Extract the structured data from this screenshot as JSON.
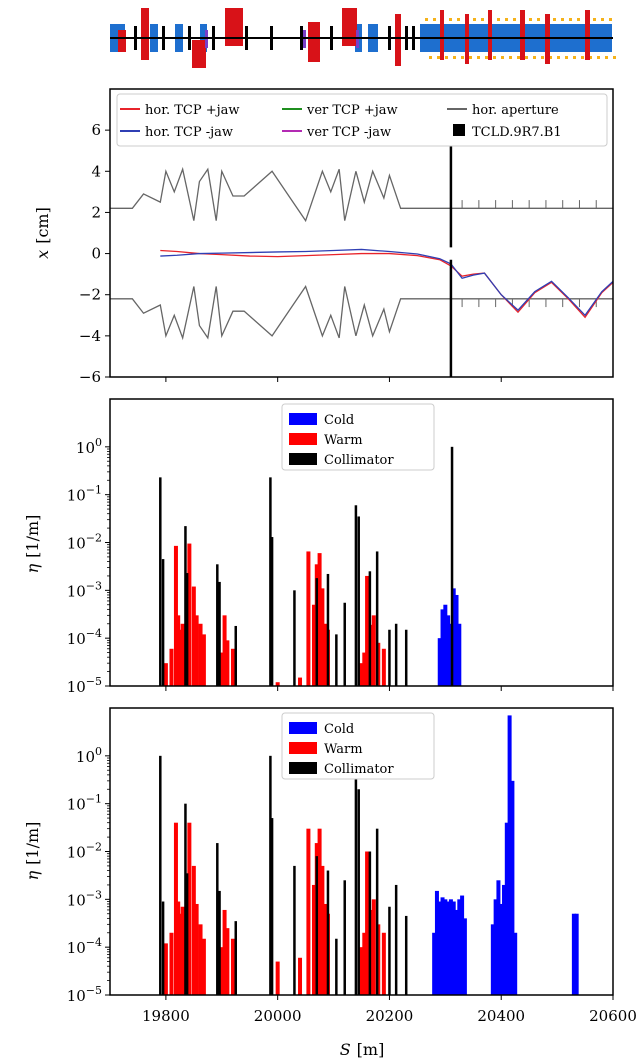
{
  "colors": {
    "hor_pos": "#e8242b",
    "hor_neg": "#2f3fb4",
    "ver_pos": "#1f8f1f",
    "ver_neg": "#b32ab3",
    "aperture": "#666666",
    "cold": "#0000ff",
    "warm": "#ff0000",
    "collimator": "#000000",
    "lattice_dipole": "#1e6fcf",
    "lattice_quad": "#d81218",
    "lattice_sext": "#f5b21a",
    "lattice_kicker": "#7a3fc8"
  },
  "chart_data": [
    {
      "type": "line",
      "panel": "orbit",
      "xlabel": "",
      "ylabel_symbol": "x",
      "ylabel_unit": "[cm]",
      "ylim": [
        -6,
        8
      ],
      "xlim": [
        19700,
        20600
      ],
      "yticks": [
        "6",
        "4",
        "2",
        "0",
        "−2",
        "−4",
        "−6"
      ],
      "legend": [
        "hor. TCP +jaw",
        "hor. TCP -jaw",
        "ver TCP +jaw",
        "ver TCP -jaw",
        "hor. aperture",
        "TCLD.9R7.B1"
      ],
      "legend_position": "top",
      "tcld_position": 20310,
      "series": [
        {
          "name": "hor. TCP +jaw",
          "x": [
            19790,
            19820,
            19860,
            19900,
            19950,
            20000,
            20050,
            20100,
            20150,
            20200,
            20250,
            20290,
            20310,
            20330,
            20350,
            20370,
            20400,
            20430,
            20460,
            20490,
            20520,
            20550,
            20580,
            20600
          ],
          "y": [
            0.15,
            0.1,
            0.0,
            -0.05,
            -0.12,
            -0.15,
            -0.1,
            -0.05,
            0.0,
            0.0,
            -0.1,
            -0.3,
            -0.6,
            -1.1,
            -1.0,
            -0.95,
            -2.0,
            -2.85,
            -1.9,
            -1.4,
            -2.2,
            -3.1,
            -1.9,
            -1.4
          ]
        },
        {
          "name": "hor. TCP -jaw",
          "x": [
            19790,
            19820,
            19860,
            19900,
            19950,
            20000,
            20050,
            20100,
            20150,
            20200,
            20250,
            20290,
            20310,
            20330,
            20350,
            20370,
            20400,
            20430,
            20460,
            20490,
            20520,
            20550,
            20580,
            20600
          ],
          "y": [
            -0.12,
            -0.08,
            0.0,
            0.02,
            0.05,
            0.08,
            0.1,
            0.15,
            0.2,
            0.1,
            -0.02,
            -0.25,
            -0.5,
            -1.2,
            -1.05,
            -0.95,
            -2.0,
            -2.75,
            -1.85,
            -1.35,
            -2.15,
            -3.0,
            -1.85,
            -1.35
          ]
        },
        {
          "name": "hor. aperture",
          "x": [
            19700,
            19740,
            19760,
            19790,
            19800,
            19815,
            19830,
            19850,
            19860,
            19875,
            19890,
            19900,
            19920,
            19940,
            19990,
            20020,
            20050,
            20080,
            20095,
            20110,
            20120,
            20140,
            20155,
            20170,
            20190,
            20200,
            20220,
            20600
          ],
          "y": [
            2.2,
            2.2,
            2.9,
            2.5,
            4.0,
            3.0,
            4.1,
            1.6,
            3.5,
            4.1,
            1.6,
            4.0,
            2.8,
            2.8,
            4.0,
            2.8,
            1.6,
            4.0,
            3.0,
            4.1,
            1.6,
            4.0,
            2.5,
            4.0,
            2.7,
            3.8,
            2.2,
            2.2
          ]
        }
      ]
    },
    {
      "type": "bar",
      "panel": "loss-map-1",
      "ylabel_symbol": "η",
      "ylabel_unit": "[1/m]",
      "yscale": "log",
      "ylim_exp": [
        -5,
        1
      ],
      "yticks_exp": [
        0,
        -1,
        -2,
        -3,
        -4,
        -5
      ],
      "xlim": [
        19700,
        20600
      ],
      "legend": [
        "Cold",
        "Warm",
        "Collimator"
      ],
      "legend_position": "top-center",
      "collimator": {
        "x": [
          19790,
          19795,
          19835,
          19838,
          19892,
          19896,
          19925,
          19987,
          19990,
          20030,
          20070,
          20090,
          20105,
          20120,
          20140,
          20145,
          20165,
          20178,
          20200,
          20212,
          20230,
          20312
        ],
        "y": [
          0.23,
          0.0045,
          0.022,
          0.0023,
          0.0035,
          0.0015,
          0.00018,
          0.23,
          0.013,
          0.001,
          0.0018,
          0.0022,
          0.00012,
          0.00055,
          0.06,
          0.035,
          0.0025,
          0.0065,
          0.00015,
          0.0002,
          0.00015,
          1.0
        ]
      },
      "warm": {
        "x": [
          19800,
          19810,
          19818,
          19822,
          19826,
          19830,
          19842,
          19850,
          19855,
          19862,
          19868,
          19900,
          19905,
          19910,
          19920,
          20000,
          20040,
          20055,
          20065,
          20070,
          20075,
          20080,
          20085,
          20090,
          20150,
          20155,
          20160,
          20162,
          20168,
          20172,
          20180,
          20190
        ],
        "y": [
          3e-05,
          6e-05,
          0.0085,
          0.0003,
          0.00015,
          0.0002,
          0.0095,
          0.0012,
          0.0003,
          0.0002,
          0.00012,
          5e-05,
          0.0003,
          9e-05,
          6e-05,
          1.2e-05,
          1.5e-05,
          0.0065,
          0.0005,
          0.0035,
          0.006,
          0.0011,
          0.0002,
          0.00015,
          3e-05,
          5e-05,
          0.002,
          0.00012,
          0.00019,
          0.0003,
          8e-05,
          6e-05
        ]
      },
      "cold": {
        "x": [
          20290,
          20295,
          20300,
          20305,
          20310,
          20315,
          20320,
          20325
        ],
        "y": [
          0.0001,
          0.0004,
          0.0005,
          0.0003,
          0.0002,
          0.0011,
          0.0008,
          0.0002
        ]
      }
    },
    {
      "type": "bar",
      "panel": "loss-map-2",
      "ylabel_symbol": "η",
      "ylabel_unit": "[1/m]",
      "yscale": "log",
      "ylim_exp": [
        -5,
        1
      ],
      "yticks_exp": [
        0,
        -1,
        -2,
        -3,
        -4,
        -5
      ],
      "xlim": [
        19700,
        20600
      ],
      "xticks": [
        19800,
        20000,
        20200,
        20400,
        20600
      ],
      "xlabel_symbol": "S",
      "xlabel_unit": "[m]",
      "legend": [
        "Cold",
        "Warm",
        "Collimator"
      ],
      "legend_position": "top-center",
      "collimator": {
        "x": [
          19790,
          19795,
          19835,
          19838,
          19892,
          19896,
          19925,
          19987,
          19990,
          20030,
          20070,
          20090,
          20105,
          20120,
          20140,
          20145,
          20165,
          20178,
          20200,
          20212,
          20230
        ],
        "y": [
          1.0,
          0.0009,
          0.1,
          0.0035,
          0.015,
          0.0015,
          0.00035,
          1.0,
          0.05,
          0.005,
          0.008,
          0.004,
          0.00015,
          0.0025,
          0.5,
          0.2,
          0.01,
          0.03,
          0.0007,
          0.002,
          0.00045
        ]
      },
      "warm": {
        "x": [
          19800,
          19810,
          19818,
          19822,
          19826,
          19830,
          19842,
          19850,
          19855,
          19862,
          19868,
          19900,
          19905,
          19910,
          19920,
          20000,
          20040,
          20055,
          20065,
          20070,
          20075,
          20080,
          20085,
          20090,
          20150,
          20155,
          20160,
          20162,
          20168,
          20172,
          20180,
          20190
        ],
        "y": [
          0.00012,
          0.0002,
          0.04,
          0.0009,
          0.0005,
          0.0007,
          0.04,
          0.005,
          0.0008,
          0.0003,
          0.00015,
          0.0001,
          0.0006,
          0.00025,
          0.00015,
          5e-05,
          6e-05,
          0.03,
          0.002,
          0.015,
          0.03,
          0.005,
          0.0008,
          0.0005,
          0.0001,
          0.0002,
          0.01,
          0.0004,
          0.0006,
          0.001,
          0.0003,
          0.0002
        ]
      },
      "cold": {
        "x": [
          20280,
          20285,
          20290,
          20295,
          20300,
          20305,
          20310,
          20315,
          20320,
          20325,
          20330,
          20335,
          20385,
          20390,
          20395,
          20400,
          20405,
          20410,
          20415,
          20420,
          20425,
          20530,
          20535
        ],
        "y": [
          0.0002,
          0.0015,
          0.0009,
          0.0011,
          0.001,
          0.0009,
          0.001,
          0.0009,
          0.0006,
          0.001,
          0.0012,
          0.0004,
          0.0003,
          0.001,
          0.0025,
          0.0008,
          0.002,
          0.04,
          7.0,
          0.3,
          0.0002,
          0.0005,
          0.0005
        ]
      }
    }
  ]
}
